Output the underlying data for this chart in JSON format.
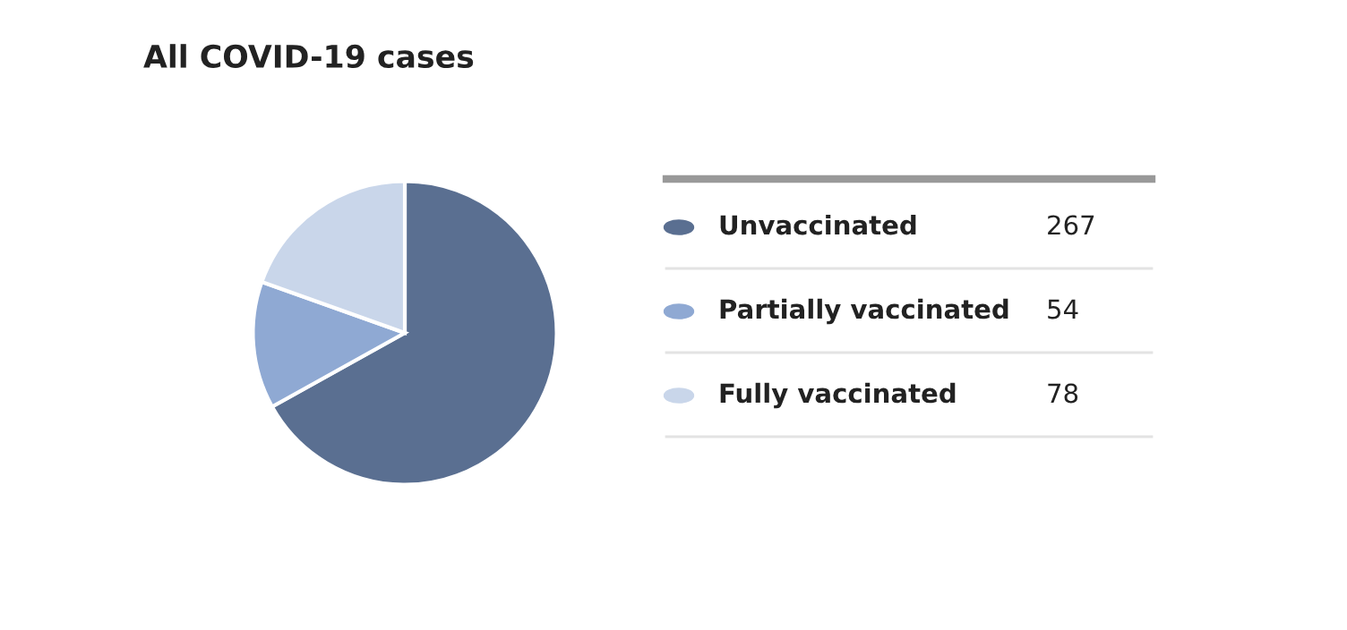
{
  "chart_data": {
    "type": "pie",
    "title": "All COVID-19 cases",
    "categories": [
      "Unvaccinated",
      "Partially vaccinated",
      "Fully vaccinated"
    ],
    "values": [
      267,
      54,
      78
    ],
    "colors": [
      "#5a6f91",
      "#8fa9d3",
      "#c9d6ea"
    ],
    "legend": "right",
    "data_labels": true
  }
}
